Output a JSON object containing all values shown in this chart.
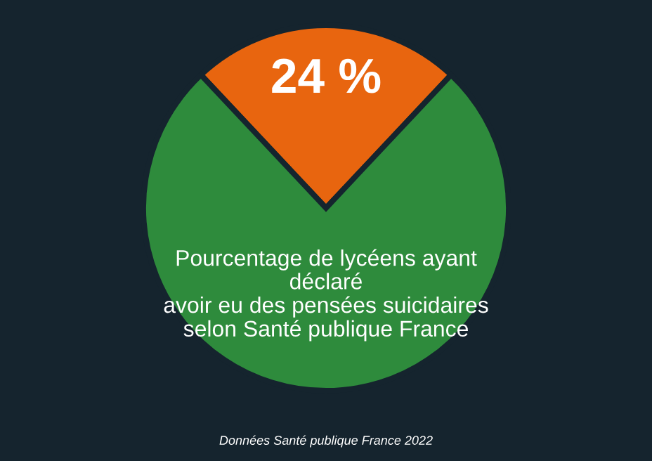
{
  "chart_data": {
    "type": "pie",
    "categories": [
      null,
      null
    ],
    "values": [
      24,
      76
    ],
    "colors": [
      "#e8650f",
      "#2e8b3c"
    ],
    "value_labels": [
      "24 %",
      null
    ],
    "annotations": [
      "Pourcentage de lycéens ayant\ndéclaré\navoir eu des pensées suicidaires\nselon Santé publique France",
      "Données Santé publique France 2022"
    ],
    "legend": false
  }
}
